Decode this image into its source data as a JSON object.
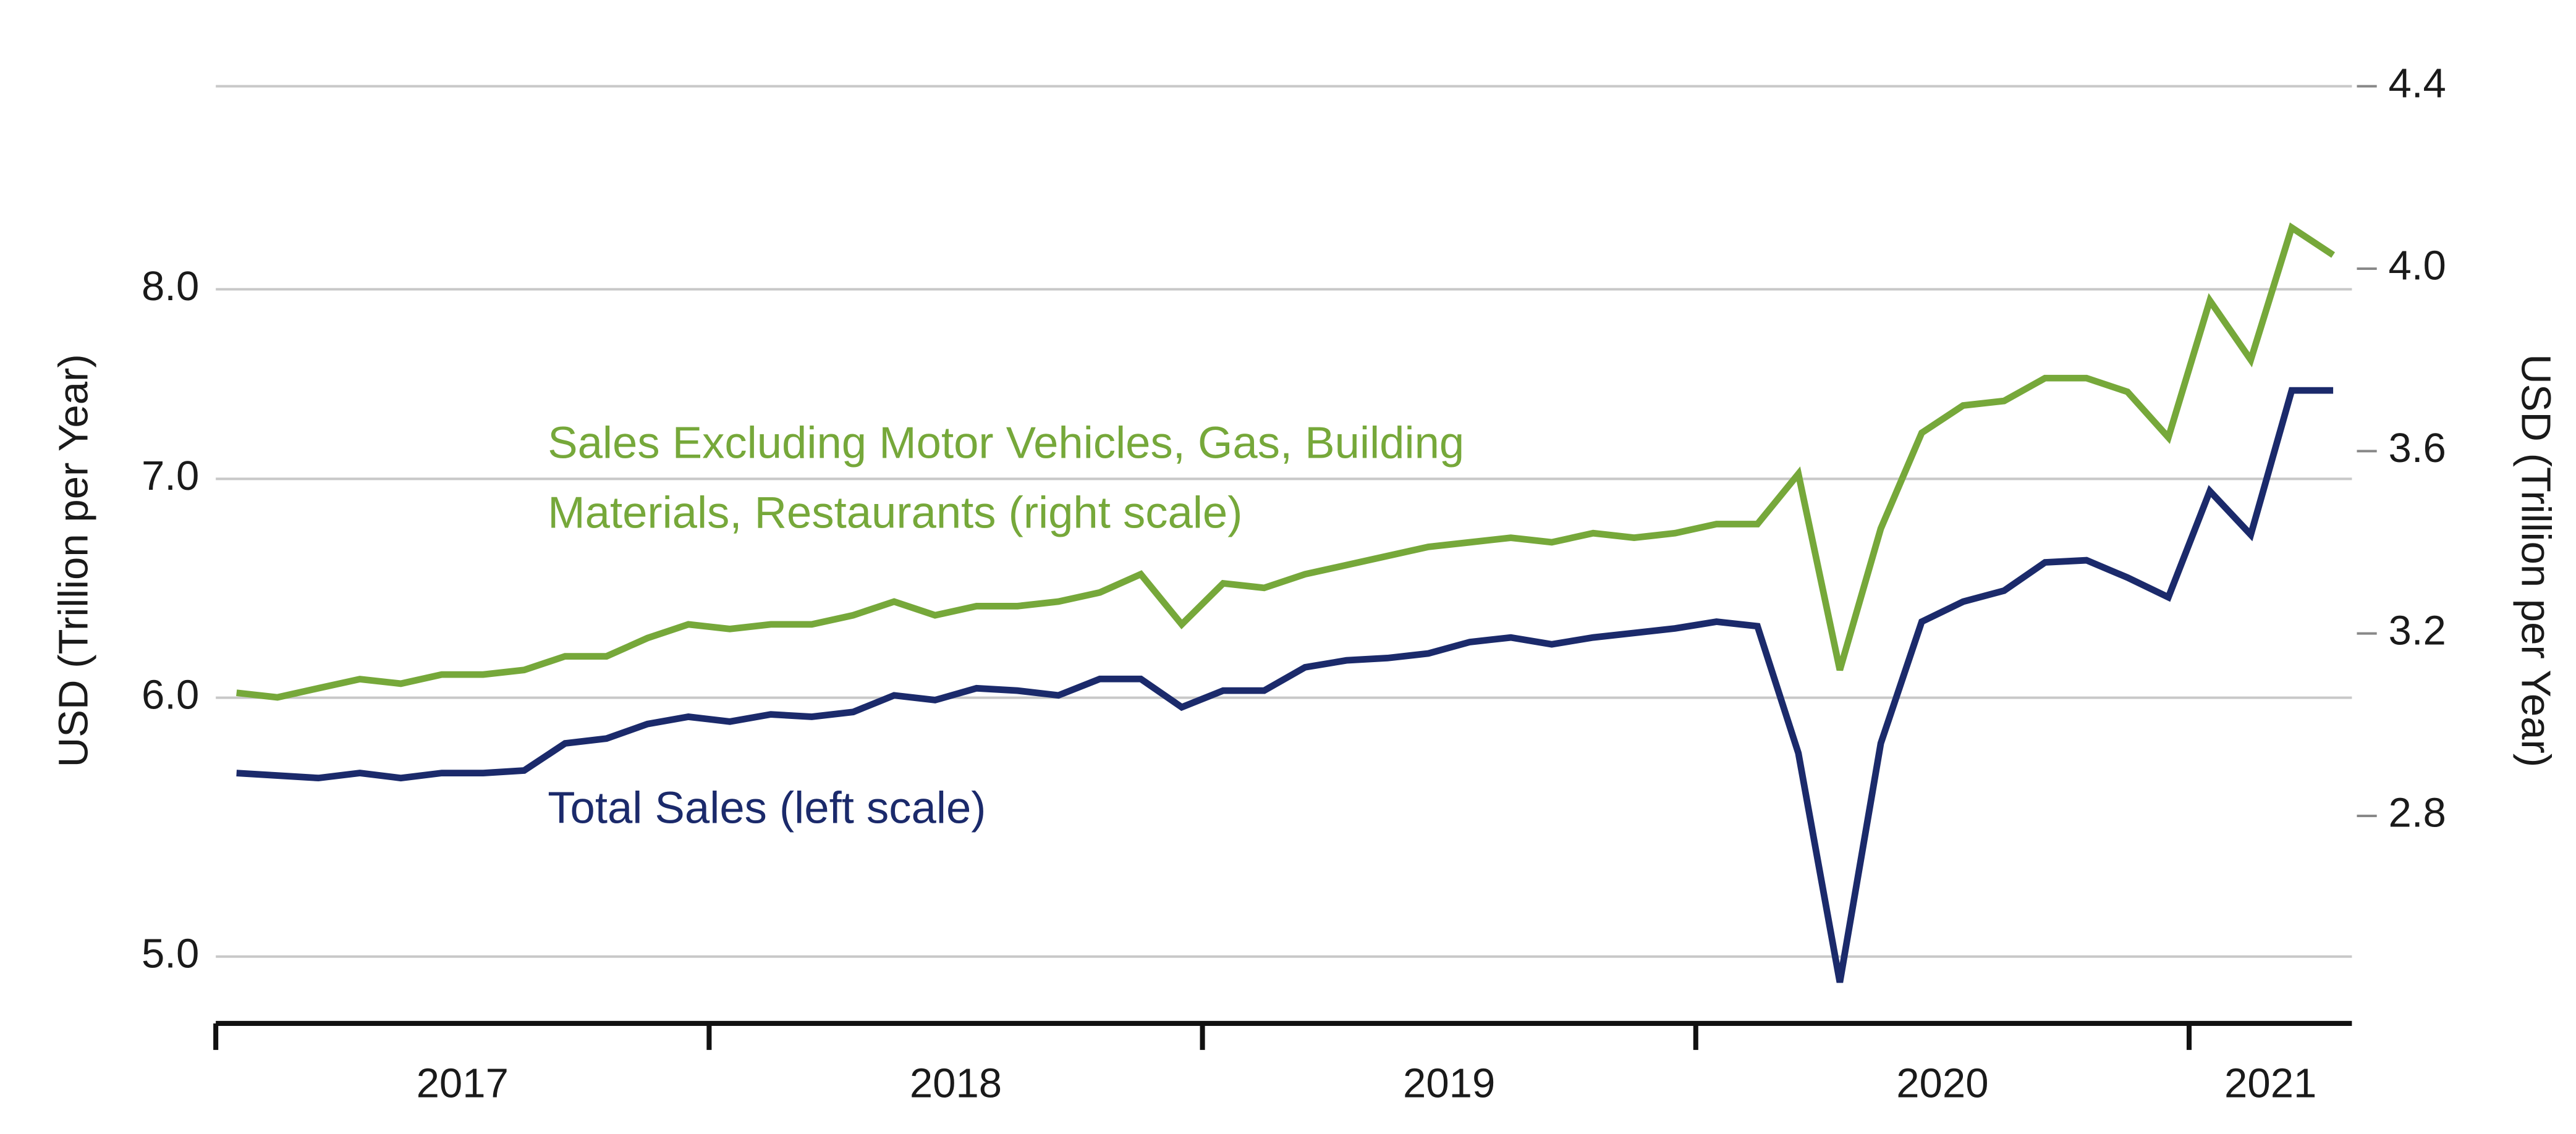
{
  "chart_data": {
    "type": "line",
    "y_axis_label": "USD (Trillion per Year)",
    "y2_axis_label": "USD (Trillion per Year)",
    "ylog": true,
    "ylim": [
      4.77,
      9.23
    ],
    "yticks": [
      {
        "value": 5,
        "label": "5.0"
      },
      {
        "value": 6,
        "label": "6.0"
      },
      {
        "value": 7,
        "label": "7.0"
      },
      {
        "value": 8,
        "label": "8.0"
      }
    ],
    "y2lim": [
      2.345,
      4.4
    ],
    "y2ticks": [
      2.8,
      3.2,
      3.6,
      4.0,
      4.4
    ],
    "xlim": [
      2017,
      2021.33
    ],
    "xticks": [
      2017,
      2018,
      2019,
      2020,
      2021
    ],
    "grid": true,
    "x": [
      2017.042,
      2017.125,
      2017.208,
      2017.292,
      2017.375,
      2017.458,
      2017.542,
      2017.625,
      2017.708,
      2017.792,
      2017.875,
      2017.958,
      2018.042,
      2018.125,
      2018.208,
      2018.292,
      2018.375,
      2018.458,
      2018.542,
      2018.625,
      2018.708,
      2018.792,
      2018.875,
      2018.958,
      2019.042,
      2019.125,
      2019.208,
      2019.292,
      2019.375,
      2019.458,
      2019.542,
      2019.625,
      2019.708,
      2019.792,
      2019.875,
      2019.958,
      2020.042,
      2020.125,
      2020.208,
      2020.292,
      2020.375,
      2020.458,
      2020.542,
      2020.625,
      2020.708,
      2020.792,
      2020.875,
      2020.958,
      2021.042,
      2021.125,
      2021.208,
      2021.292
    ],
    "series": [
      {
        "name": [
          "Sales Excluding Motor Vehicles, Gas, Building",
          "Materials, Restaurants (right scale)"
        ],
        "color": "#76a83a",
        "axis": "y2",
        "values": [
          3.07,
          3.06,
          3.08,
          3.1,
          3.09,
          3.11,
          3.11,
          3.12,
          3.15,
          3.15,
          3.19,
          3.22,
          3.21,
          3.22,
          3.22,
          3.24,
          3.27,
          3.24,
          3.26,
          3.26,
          3.27,
          3.29,
          3.33,
          3.22,
          3.31,
          3.3,
          3.33,
          3.35,
          3.37,
          3.39,
          3.4,
          3.41,
          3.4,
          3.42,
          3.41,
          3.42,
          3.44,
          3.44,
          3.55,
          3.12,
          3.43,
          3.64,
          3.7,
          3.71,
          3.76,
          3.76,
          3.73,
          3.63,
          3.93,
          3.8,
          4.09,
          4.03
        ]
      },
      {
        "name": [
          "Total Sales (left scale)"
        ],
        "color": "#1b2a6b",
        "axis": "y",
        "values": [
          5.69,
          5.68,
          5.67,
          5.69,
          5.67,
          5.69,
          5.69,
          5.7,
          5.81,
          5.83,
          5.89,
          5.92,
          5.9,
          5.93,
          5.92,
          5.94,
          6.01,
          5.99,
          6.04,
          6.03,
          6.01,
          6.08,
          6.08,
          5.96,
          6.03,
          6.03,
          6.13,
          6.16,
          6.17,
          6.19,
          6.24,
          6.26,
          6.23,
          6.26,
          6.28,
          6.3,
          6.33,
          6.31,
          5.77,
          4.91,
          5.81,
          6.33,
          6.42,
          6.47,
          6.6,
          6.61,
          6.53,
          6.44,
          6.94,
          6.73,
          7.45,
          7.45
        ]
      }
    ]
  }
}
